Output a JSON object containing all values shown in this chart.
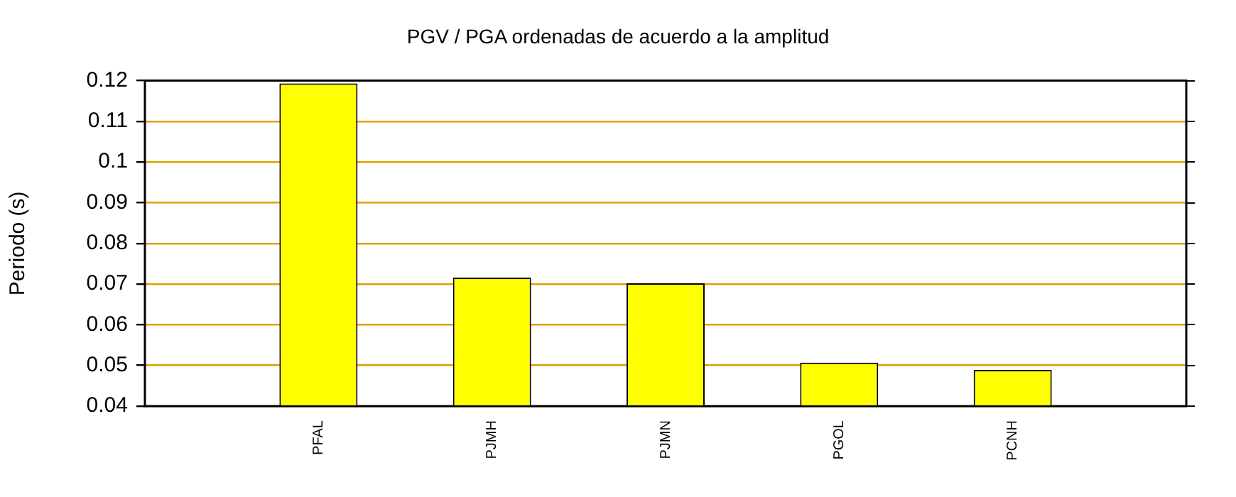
{
  "chart_data": {
    "type": "bar",
    "title": "PGV / PGA ordenadas de acuerdo a la amplitud",
    "ylabel": "Periodo (s)",
    "categories": [
      "PFAL",
      "PJMH",
      "PJMN",
      "PGOL",
      "PCNH"
    ],
    "values": [
      0.1193,
      0.0716,
      0.0702,
      0.0507,
      0.0489
    ],
    "color": "#ffff00",
    "ylim": [
      0.04,
      0.12
    ],
    "yticks": [
      0.04,
      0.05,
      0.06,
      0.07,
      0.08,
      0.09,
      0.1,
      0.11,
      0.12
    ],
    "grid": "y",
    "legend": false
  }
}
